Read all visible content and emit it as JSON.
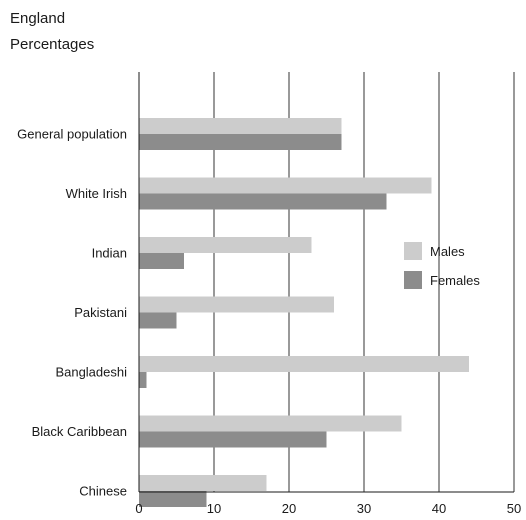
{
  "header": {
    "region": "England",
    "unit": "Percentages"
  },
  "chart_data": {
    "type": "bar",
    "orientation": "horizontal",
    "categories": [
      "General population",
      "White Irish",
      "Indian",
      "Pakistani",
      "Bangladeshi",
      "Black Caribbean",
      "Chinese"
    ],
    "series": [
      {
        "name": "Males",
        "color": "#cccccc",
        "values": [
          27,
          39,
          23,
          26,
          44,
          35,
          17
        ]
      },
      {
        "name": "Females",
        "color": "#8c8c8c",
        "values": [
          27,
          33,
          6,
          5,
          1,
          25,
          9
        ]
      }
    ],
    "xlim": [
      0,
      50
    ],
    "xticks": [
      0,
      10,
      20,
      30,
      40,
      50
    ],
    "grid": true,
    "legend": "right"
  }
}
